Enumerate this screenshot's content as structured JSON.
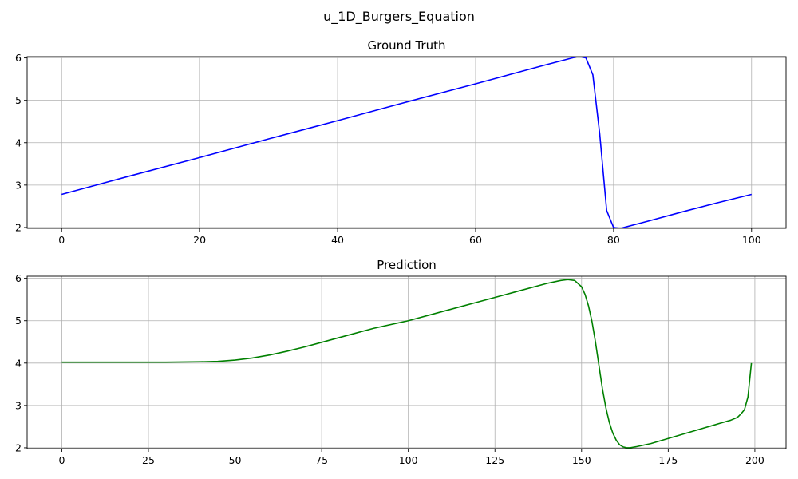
{
  "figure": {
    "suptitle": "u_1D_Burgers_Equation"
  },
  "chart_data": [
    {
      "type": "line",
      "title": "Ground Truth",
      "xlabel": "",
      "ylabel": "",
      "xlim": [
        -5,
        105
      ],
      "ylim": [
        1.98,
        6.03
      ],
      "xticks": [
        0,
        20,
        40,
        60,
        80,
        100
      ],
      "yticks": [
        2,
        3,
        4,
        5,
        6
      ],
      "grid": true,
      "series": [
        {
          "color": "#0000ff",
          "x": [
            0,
            10,
            20,
            30,
            40,
            50,
            60,
            70,
            74,
            75,
            76,
            77,
            78,
            79,
            80,
            81,
            85,
            90,
            95,
            100
          ],
          "y": [
            2.78,
            3.22,
            3.65,
            4.09,
            4.52,
            4.96,
            5.39,
            5.83,
            6.0,
            6.04,
            6.0,
            5.6,
            4.2,
            2.4,
            2.0,
            1.98,
            2.15,
            2.37,
            2.58,
            2.78
          ]
        }
      ]
    },
    {
      "type": "line",
      "title": "Prediction",
      "xlabel": "",
      "ylabel": "",
      "xlim": [
        -10,
        209
      ],
      "ylim": [
        1.98,
        6.05
      ],
      "xticks": [
        0,
        25,
        50,
        75,
        100,
        125,
        150,
        175,
        200
      ],
      "yticks": [
        2,
        3,
        4,
        5,
        6
      ],
      "grid": true,
      "series": [
        {
          "color": "#008000",
          "x": [
            0,
            10,
            20,
            30,
            40,
            45,
            50,
            55,
            60,
            65,
            70,
            75,
            80,
            90,
            100,
            110,
            120,
            130,
            140,
            144,
            146,
            148,
            150,
            151,
            152,
            153,
            154,
            155,
            156,
            157,
            158,
            159,
            160,
            161,
            162,
            163,
            164,
            166,
            170,
            175,
            180,
            185,
            190,
            193,
            195,
            196,
            197,
            198,
            199
          ],
          "y": [
            4.02,
            4.02,
            4.02,
            4.02,
            4.03,
            4.04,
            4.07,
            4.12,
            4.19,
            4.28,
            4.38,
            4.49,
            4.6,
            4.82,
            5.0,
            5.22,
            5.44,
            5.66,
            5.88,
            5.95,
            5.97,
            5.95,
            5.8,
            5.62,
            5.35,
            4.98,
            4.5,
            3.95,
            3.4,
            2.95,
            2.6,
            2.35,
            2.18,
            2.07,
            2.02,
            2.0,
            2.0,
            2.03,
            2.1,
            2.22,
            2.34,
            2.46,
            2.58,
            2.65,
            2.72,
            2.8,
            2.9,
            3.2,
            4.0
          ]
        }
      ]
    }
  ]
}
